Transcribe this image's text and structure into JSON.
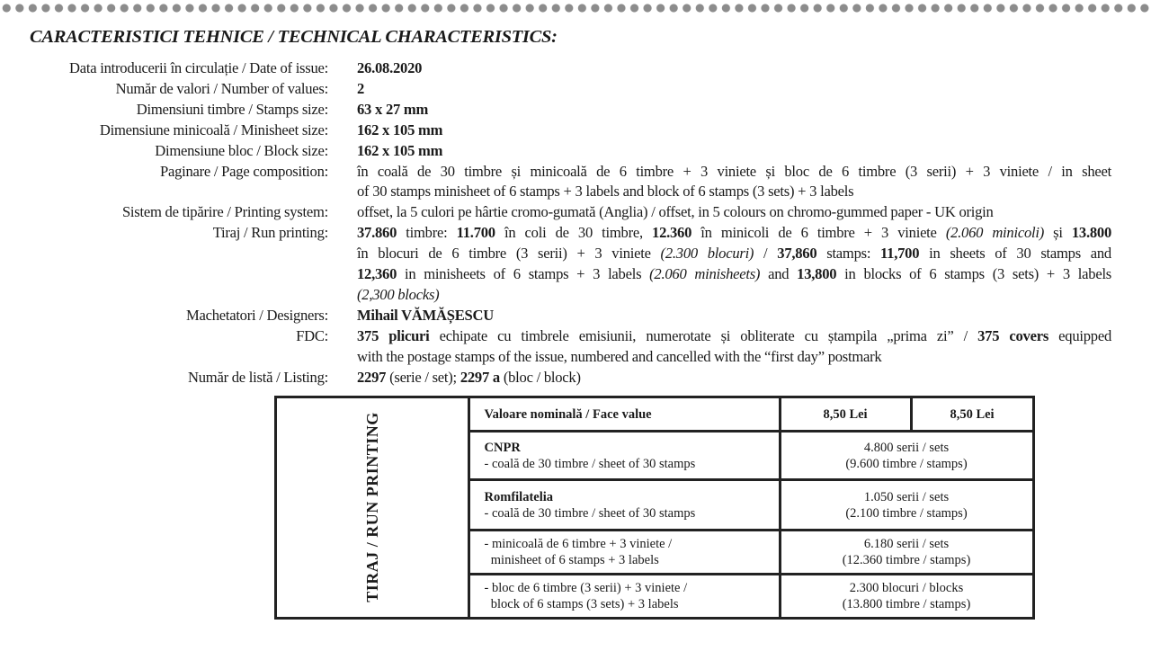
{
  "title": "CARACTERISTICI TEHNICE / TECHNICAL CHARACTERISTICS:",
  "specs": [
    {
      "label": "Data introducerii în circulație / Date of issue:",
      "lines": [
        [
          {
            "t": "26.08.2020",
            "b": true
          }
        ]
      ]
    },
    {
      "label": "Număr de valori / Number of values:",
      "lines": [
        [
          {
            "t": "2",
            "b": true
          }
        ]
      ]
    },
    {
      "label": "Dimensiuni timbre / Stamps size:",
      "lines": [
        [
          {
            "t": "63 x 27 mm",
            "b": true
          }
        ]
      ]
    },
    {
      "label": "Dimensiune minicoală / Minisheet size:",
      "lines": [
        [
          {
            "t": "162 x 105 mm",
            "b": true
          }
        ]
      ]
    },
    {
      "label": "Dimensiune bloc / Block size:",
      "lines": [
        [
          {
            "t": "162 x 105 mm",
            "b": true
          }
        ]
      ]
    },
    {
      "label": "Paginare / Page composition:",
      "lines": [
        [
          {
            "t": "în coală de 30 timbre și minicoală de 6 timbre + 3 viniete și bloc de 6 timbre (3 serii) + 3 viniete / in sheet"
          }
        ],
        [
          {
            "t": "of 30 stamps minisheet of 6 stamps + 3 labels and block of 6 stamps (3 sets) + 3 labels"
          }
        ]
      ]
    },
    {
      "label": "Sistem de tipărire / Printing system:",
      "lines": [
        [
          {
            "t": "offset, la 5 culori pe hârtie cromo-gumată (Anglia) / offset, in 5 colours on chromo-gummed paper - UK origin"
          }
        ]
      ]
    },
    {
      "label": "Tiraj / Run printing:",
      "lines": [
        [
          {
            "t": "37.860",
            "b": true
          },
          {
            "t": " timbre: "
          },
          {
            "t": "11.700",
            "b": true
          },
          {
            "t": " în coli de 30 timbre, "
          },
          {
            "t": "12.360",
            "b": true
          },
          {
            "t": " în minicoli de 6 timbre + 3 viniete "
          },
          {
            "t": "(2.060 minicoli)",
            "i": true
          },
          {
            "t": " și "
          },
          {
            "t": "13.800",
            "b": true
          }
        ],
        [
          {
            "t": "în blocuri de 6 timbre (3 serii) + 3 viniete "
          },
          {
            "t": "(2.300 blocuri)",
            "i": true
          },
          {
            "t": " / "
          },
          {
            "t": "37,860",
            "b": true
          },
          {
            "t": " stamps: "
          },
          {
            "t": "11,700",
            "b": true
          },
          {
            "t": " in sheets of 30 stamps and"
          }
        ],
        [
          {
            "t": "12,360",
            "b": true
          },
          {
            "t": " in minisheets of 6 stamps + 3 labels "
          },
          {
            "t": "(2.060 minisheets)",
            "i": true
          },
          {
            "t": " and "
          },
          {
            "t": "13,800",
            "b": true
          },
          {
            "t": " in blocks of 6 stamps (3 sets) + 3 labels"
          }
        ],
        [
          {
            "t": "(2,300 blocks)",
            "i": true
          }
        ]
      ]
    },
    {
      "label": "Machetatori / Designers:",
      "lines": [
        [
          {
            "t": "Mihail VĂMĂȘESCU",
            "b": true
          }
        ]
      ]
    },
    {
      "label": "FDC:",
      "lines": [
        [
          {
            "t": "375 plicuri",
            "b": true
          },
          {
            "t": " echipate cu timbrele emisiunii, numerotate și obliterate cu ștampila „prima zi” / "
          },
          {
            "t": "375 covers",
            "b": true
          },
          {
            "t": " equipped"
          }
        ],
        [
          {
            "t": "with the postage stamps of the issue, numbered and cancelled with the “first day” postmark"
          }
        ]
      ]
    },
    {
      "label": "Număr de listă / Listing:",
      "lines": [
        [
          {
            "t": "2297",
            "b": true
          },
          {
            "t": " (serie / set); "
          },
          {
            "t": "2297 a",
            "b": true
          },
          {
            "t": " (bloc / block)"
          }
        ]
      ]
    }
  ],
  "table": {
    "side_label": "TIRAJ / RUN PRINTING",
    "header": {
      "label": "Valoare nominală / Face value",
      "value1": "8,50 Lei",
      "value2": "8,50 Lei"
    },
    "rows": [
      {
        "title": "CNPR",
        "desc1": "- coală de 30 timbre / sheet of 30 stamps",
        "desc2": "",
        "qty1": "4.800 serii / sets",
        "qty2": "(9.600 timbre / stamps)"
      },
      {
        "title": "Romfilatelia",
        "desc1": "- coală de 30 timbre / sheet of 30 stamps",
        "desc2": "",
        "qty1": "1.050 serii / sets",
        "qty2": "(2.100 timbre / stamps)"
      },
      {
        "title": "",
        "desc1": "- minicoală de 6 timbre + 3 viniete /",
        "desc2": "  minisheet of 6 stamps + 3 labels",
        "qty1": "6.180 serii / sets",
        "qty2": "(12.360 timbre / stamps)"
      },
      {
        "title": "",
        "desc1": "- bloc de 6 timbre (3 serii) + 3 viniete /",
        "desc2": "  block of 6 stamps (3 sets) + 3 labels",
        "qty1": "2.300 blocuri / blocks",
        "qty2": "(13.800 timbre / stamps)"
      }
    ]
  }
}
